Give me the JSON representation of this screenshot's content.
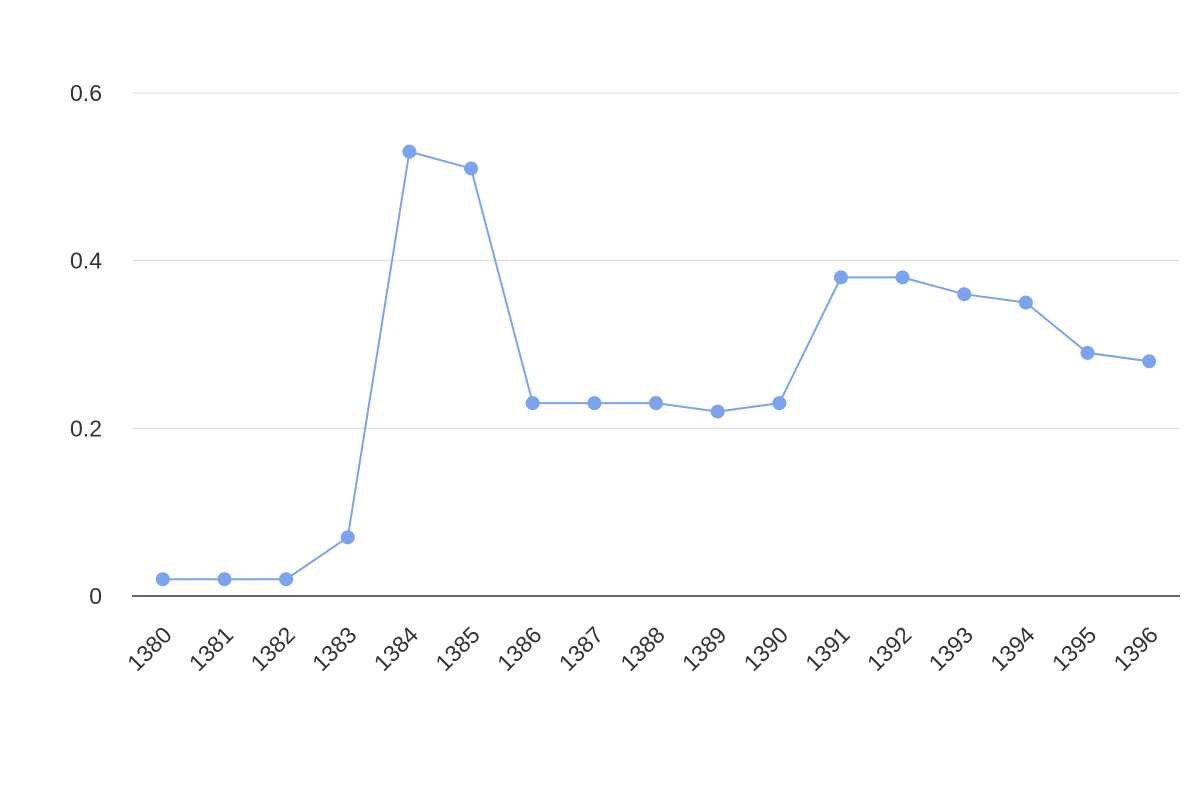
{
  "chart_data": {
    "type": "line",
    "categories": [
      "1380",
      "1381",
      "1382",
      "1383",
      "1384",
      "1385",
      "1386",
      "1387",
      "1388",
      "1389",
      "1390",
      "1391",
      "1392",
      "1393",
      "1394",
      "1395",
      "1396"
    ],
    "values": [
      0.02,
      0.02,
      0.02,
      0.07,
      0.53,
      0.51,
      0.23,
      0.23,
      0.23,
      0.22,
      0.23,
      0.38,
      0.38,
      0.36,
      0.35,
      0.29,
      0.28
    ],
    "color": "#7ba3ee",
    "ylim": [
      0,
      0.6
    ],
    "yticks": [
      0,
      0.2,
      0.4,
      0.6
    ],
    "grid": true
  }
}
